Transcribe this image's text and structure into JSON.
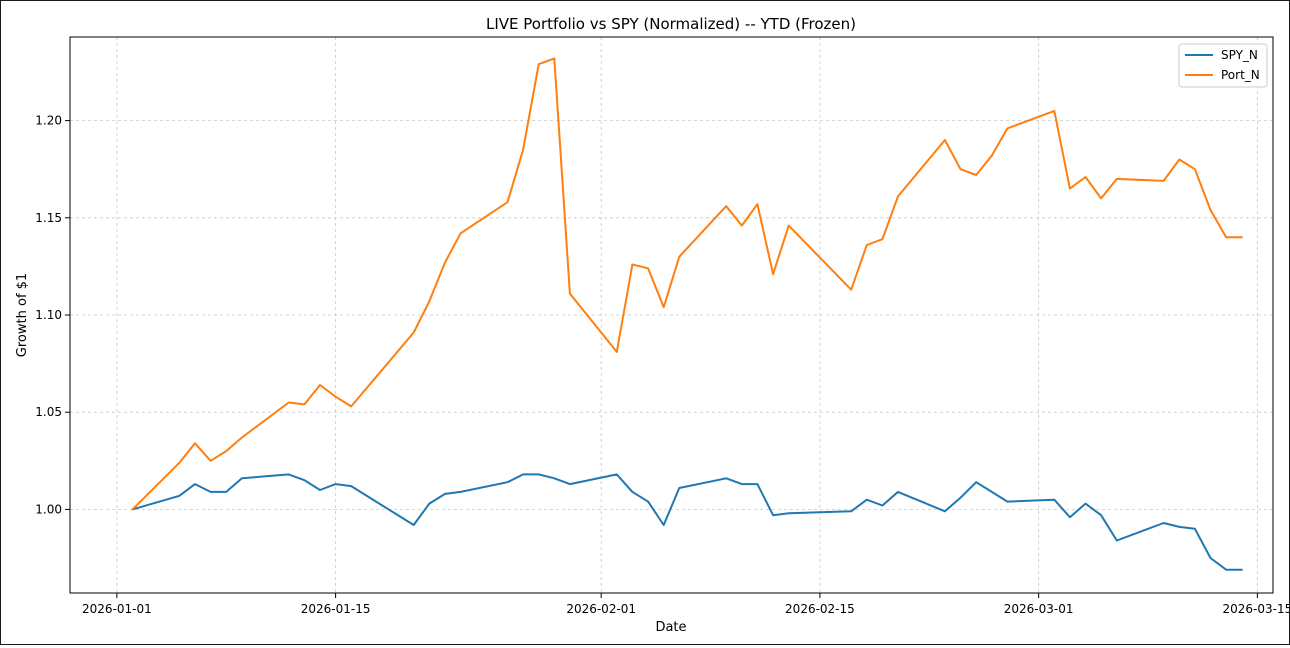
{
  "chart_data": {
    "type": "line",
    "title": "LIVE Portfolio vs SPY (Normalized) -- YTD (Frozen)",
    "xlabel": "Date",
    "ylabel": "Growth of $1",
    "xlim": [
      "2025-12-29",
      "2026-03-16"
    ],
    "ylim": [
      0.957,
      1.243
    ],
    "grid": true,
    "legend_position": "top-right",
    "x_ticks": [
      "2026-01-01",
      "2026-01-15",
      "2026-02-01",
      "2026-02-15",
      "2026-03-01",
      "2026-03-15"
    ],
    "y_ticks": [
      "1.00",
      "1.05",
      "1.10",
      "1.15",
      "1.20"
    ],
    "y_tick_values": [
      1.0,
      1.05,
      1.1,
      1.15,
      1.2
    ],
    "dates": [
      "2026-01-02",
      "2026-01-05",
      "2026-01-06",
      "2026-01-07",
      "2026-01-08",
      "2026-01-09",
      "2026-01-12",
      "2026-01-13",
      "2026-01-14",
      "2026-01-15",
      "2026-01-16",
      "2026-01-20",
      "2026-01-21",
      "2026-01-22",
      "2026-01-23",
      "2026-01-26",
      "2026-01-27",
      "2026-01-28",
      "2026-01-29",
      "2026-01-30",
      "2026-02-02",
      "2026-02-03",
      "2026-02-04",
      "2026-02-05",
      "2026-02-06",
      "2026-02-09",
      "2026-02-10",
      "2026-02-11",
      "2026-02-12",
      "2026-02-13",
      "2026-02-17",
      "2026-02-18",
      "2026-02-19",
      "2026-02-20",
      "2026-02-23",
      "2026-02-24",
      "2026-02-25",
      "2026-02-26",
      "2026-02-27",
      "2026-03-02",
      "2026-03-03",
      "2026-03-04",
      "2026-03-05",
      "2026-03-06",
      "2026-03-09",
      "2026-03-10",
      "2026-03-11",
      "2026-03-12",
      "2026-03-13",
      "2026-03-14"
    ],
    "series": [
      {
        "name": "SPY_N",
        "color": "#1f77b4",
        "values": [
          1.0,
          1.007,
          1.013,
          1.009,
          1.009,
          1.016,
          1.018,
          1.015,
          1.01,
          1.013,
          1.012,
          0.992,
          1.003,
          1.008,
          1.009,
          1.014,
          1.018,
          1.018,
          1.016,
          1.013,
          1.018,
          1.009,
          1.004,
          0.992,
          1.011,
          1.016,
          1.013,
          1.013,
          0.997,
          0.998,
          0.999,
          1.005,
          1.002,
          1.009,
          0.999,
          1.006,
          1.014,
          1.009,
          1.004,
          1.005,
          0.996,
          1.003,
          0.997,
          0.984,
          0.993,
          0.991,
          0.99,
          0.975,
          0.969,
          0.969
        ]
      },
      {
        "name": "Port_N",
        "color": "#ff7f0e",
        "values": [
          1.0,
          1.024,
          1.034,
          1.025,
          1.03,
          1.037,
          1.055,
          1.054,
          1.064,
          1.058,
          1.053,
          1.091,
          1.107,
          1.127,
          1.142,
          1.158,
          1.185,
          1.229,
          1.232,
          1.111,
          1.081,
          1.126,
          1.124,
          1.104,
          1.13,
          1.156,
          1.146,
          1.157,
          1.121,
          1.146,
          1.113,
          1.136,
          1.139,
          1.161,
          1.19,
          1.175,
          1.172,
          1.182,
          1.196,
          1.205,
          1.165,
          1.171,
          1.16,
          1.17,
          1.169,
          1.18,
          1.175,
          1.154,
          1.14,
          1.14
        ]
      }
    ]
  }
}
